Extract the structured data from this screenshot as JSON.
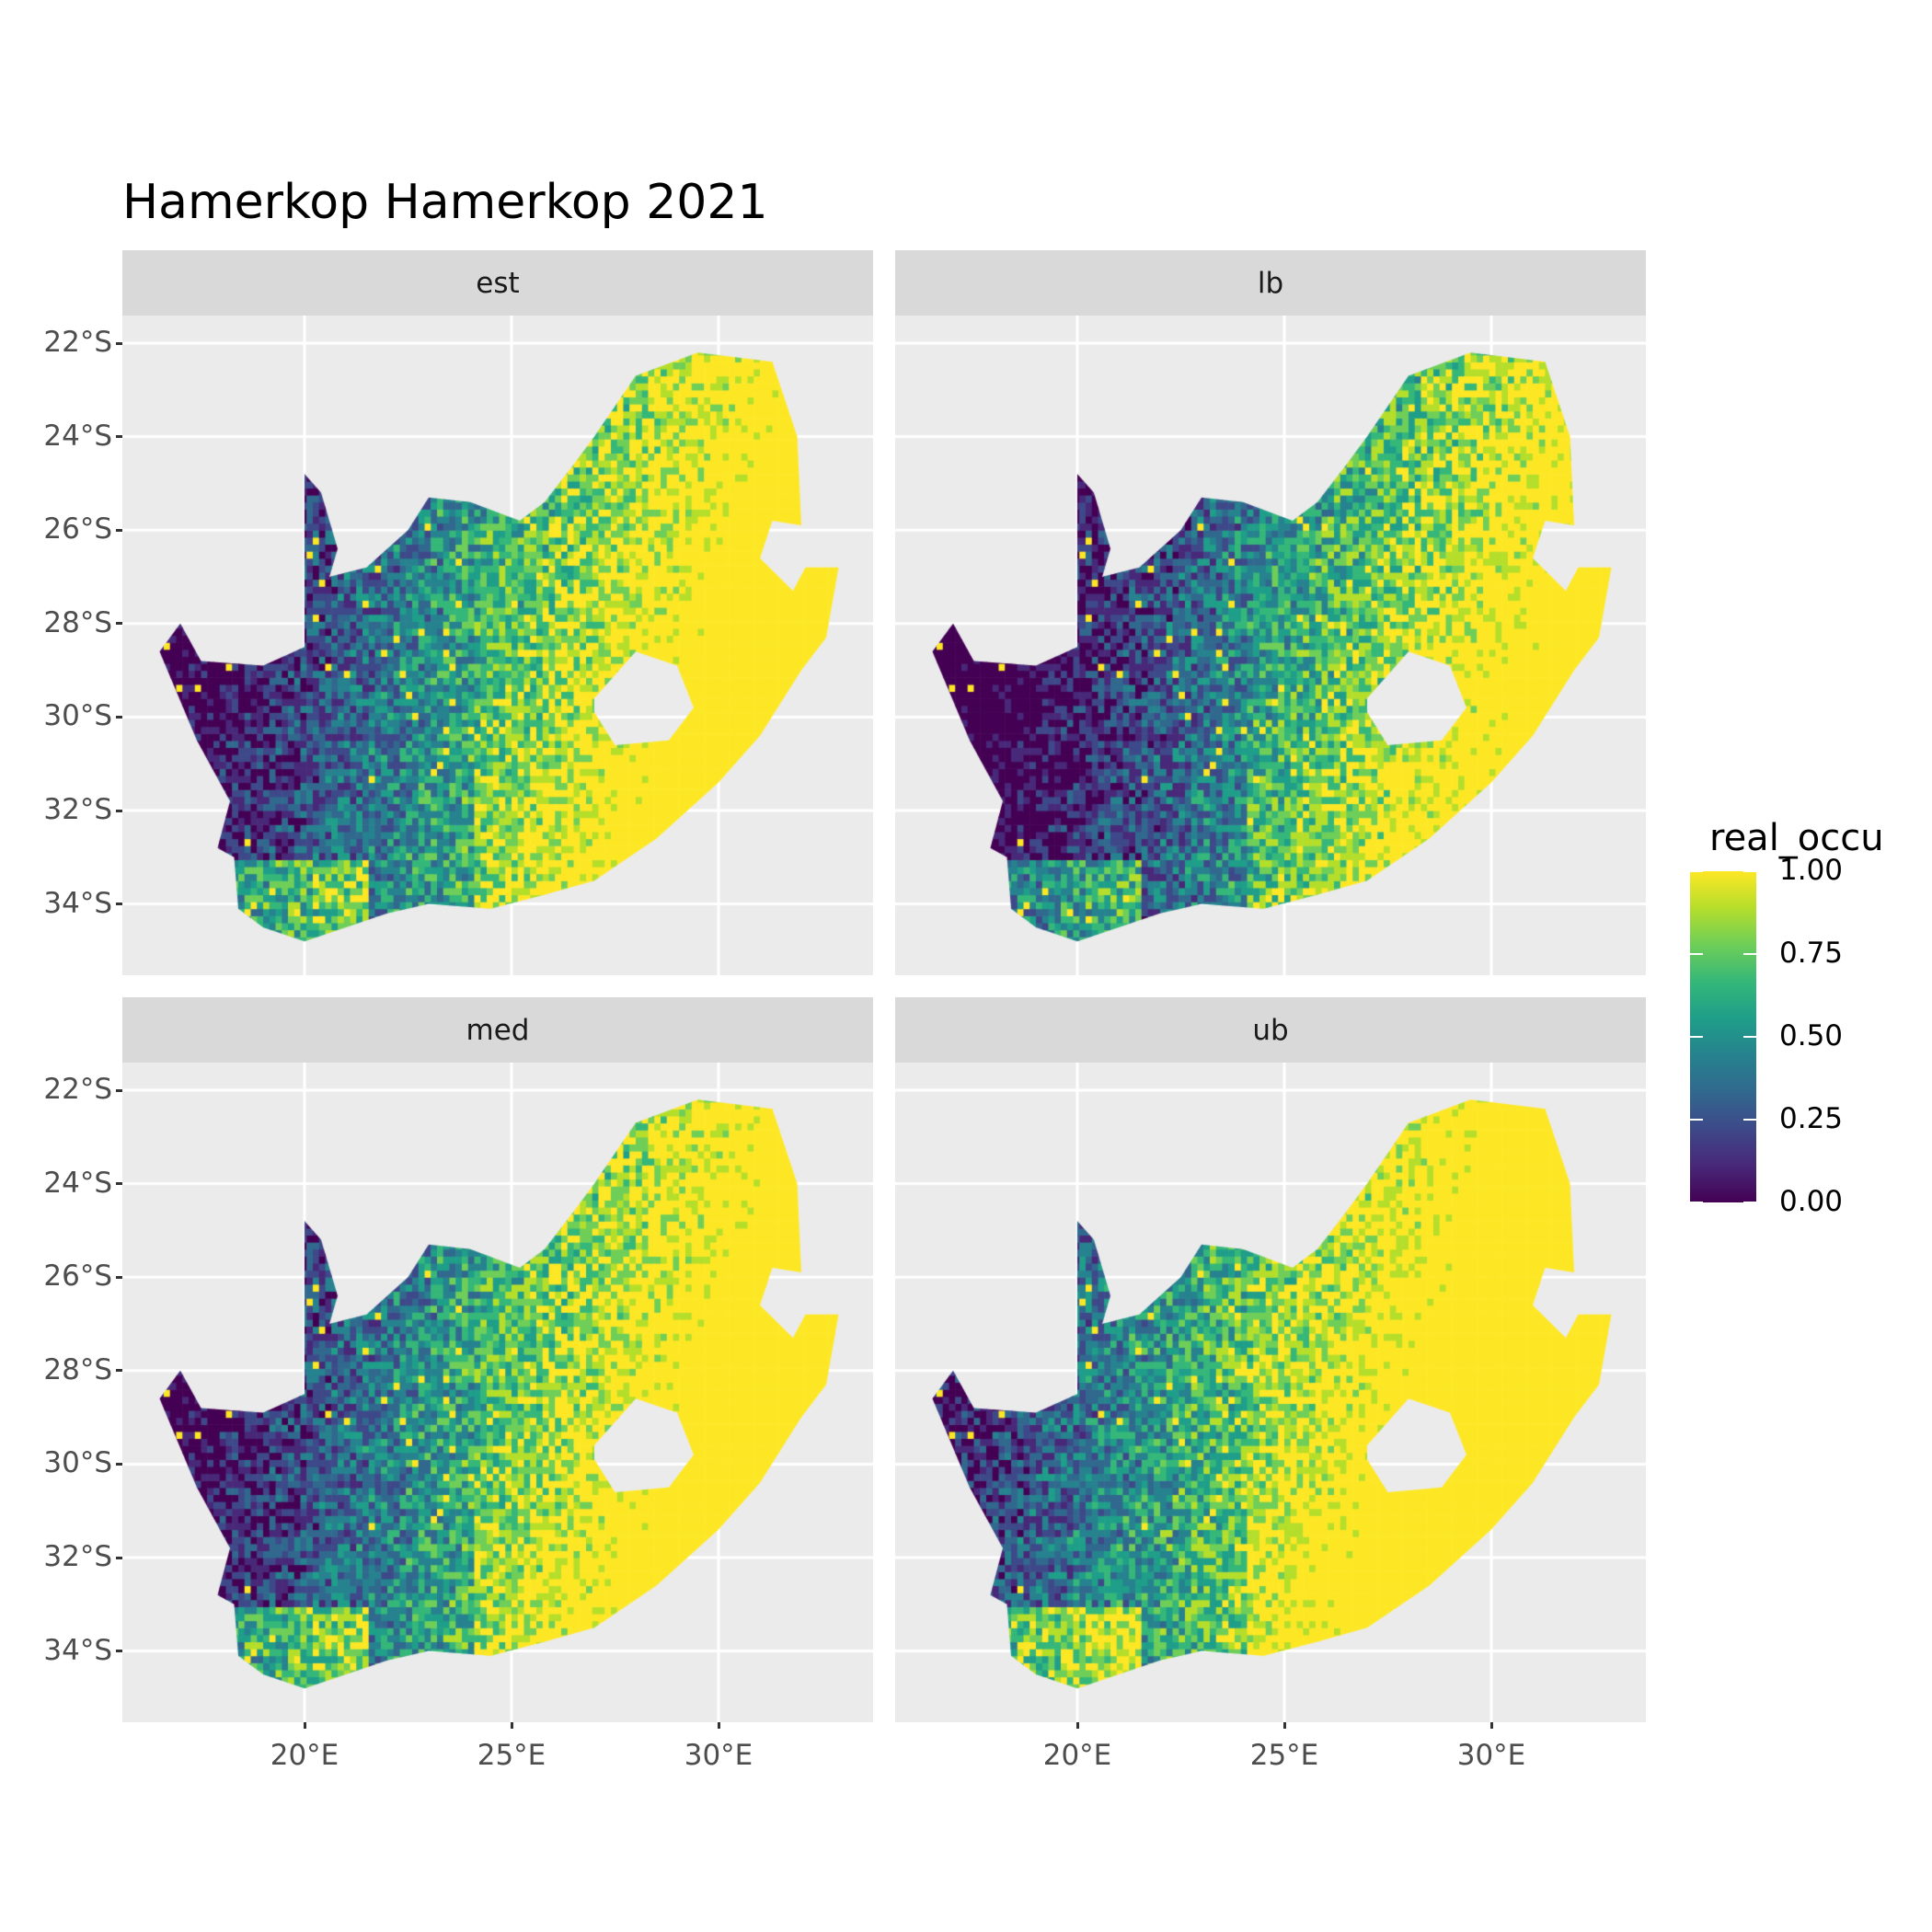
{
  "chart_data": {
    "type": "heatmap",
    "title": "Hamerkop Hamerkop 2021",
    "facets": [
      "est",
      "lb",
      "med",
      "ub"
    ],
    "xlabel": "",
    "ylabel": "",
    "x_ticks": [
      "20°E",
      "25°E",
      "30°E"
    ],
    "x_tick_values": [
      20,
      25,
      30
    ],
    "y_ticks": [
      "22°S",
      "24°S",
      "26°S",
      "28°S",
      "30°S",
      "32°S",
      "34°S"
    ],
    "y_tick_values": [
      -22,
      -24,
      -26,
      -28,
      -30,
      -32,
      -34
    ],
    "xlim": [
      15.7,
      33.8
    ],
    "ylim": [
      -35.3,
      -20.4
    ],
    "fill_variable": "real_occu",
    "colorbar": {
      "title": "real_occu",
      "palette": "viridis",
      "range": [
        0,
        1
      ],
      "ticks": [
        "0.00",
        "0.25",
        "0.50",
        "0.75",
        "1.00"
      ],
      "tick_values": [
        0,
        0.25,
        0.5,
        0.75,
        1
      ],
      "legend_position": "right"
    },
    "region": "South Africa",
    "pattern": "low occupancy (0–0.3) in the arid west and northwest; high occupancy (0.75–1.0) in the east and northeast; ub panel highest, lb lowest"
  }
}
